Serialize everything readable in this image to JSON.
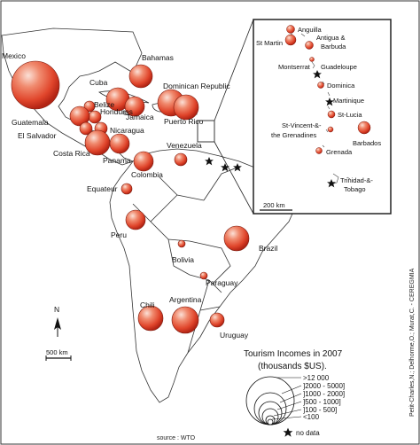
{
  "map": {
    "title_line1": "Tourism Incomes in 2007",
    "title_line2": "(thousands $US).",
    "source": "source : WTO",
    "credit": "Petit-Charles,N.; Delhorme,O.; Murat,C. - CEREGMIA",
    "north_label": "N",
    "scale_main": "500 km",
    "scale_inset": "200 km",
    "legend_classes": [
      ">12 000",
      "]2000 - 5000]",
      "]1000 - 2000]",
      "]500 - 1000]",
      "]100 - 500]",
      "<100"
    ],
    "no_data_label": "no data",
    "colors": {
      "bubble_center": "#fbe0d6",
      "bubble_mid": "#e8573b",
      "bubble_edge": "#b32414",
      "land_stroke": "#333333"
    },
    "icons": [
      "star-icon",
      "north-arrow-icon",
      "scale-bar-icon"
    ]
  },
  "countries": [
    {
      "name": "Mexico",
      "value_class": ">12 000"
    },
    {
      "name": "Cuba",
      "value_class": "]2000 - 5000]"
    },
    {
      "name": "Bahamas",
      "value_class": "]2000 - 5000]"
    },
    {
      "name": "Dominican Republic",
      "value_class": "]2000 - 5000]"
    },
    {
      "name": "Jamaica",
      "value_class": "]1000 - 2000]"
    },
    {
      "name": "Puerto Rico",
      "value_class": "]2000 - 5000]"
    },
    {
      "name": "Belize",
      "value_class": "]100 - 500]"
    },
    {
      "name": "Honduras",
      "value_class": "]500 - 1000]"
    },
    {
      "name": "Guatemala",
      "value_class": "]1000 - 2000]"
    },
    {
      "name": "El Salvador",
      "value_class": "]500 - 1000]"
    },
    {
      "name": "Nicaragua",
      "value_class": "]100 - 500]"
    },
    {
      "name": "Costa Rica",
      "value_class": "]1000 - 2000]"
    },
    {
      "name": "Panama",
      "value_class": "]1000 - 2000]"
    },
    {
      "name": "Venezuela",
      "value_class": "]500 - 1000]"
    },
    {
      "name": "Colombia",
      "value_class": "]1000 - 2000]"
    },
    {
      "name": "Equateur",
      "value_class": "]100 - 500]"
    },
    {
      "name": "Peru",
      "value_class": "]1000 - 2000]"
    },
    {
      "name": "Brazil",
      "value_class": "]2000 - 5000]"
    },
    {
      "name": "Bolivia",
      "value_class": "<100"
    },
    {
      "name": "Paraguay",
      "value_class": "<100"
    },
    {
      "name": "Chili",
      "value_class": "]1000 - 2000]"
    },
    {
      "name": "Argentina",
      "value_class": "]2000 - 5000]"
    },
    {
      "name": "Uruguay",
      "value_class": "]500 - 1000]"
    }
  ],
  "inset_islands": [
    {
      "name": "Anguilla",
      "value_class": "]100 - 500]"
    },
    {
      "name": "St Martin",
      "value_class": "]500 - 1000]"
    },
    {
      "name": "Antigua & Barbuda",
      "value_class": "]100 - 500]"
    },
    {
      "name": "Montserrat",
      "value_class": "<100"
    },
    {
      "name": "Guadeloupe",
      "value_class": "no data"
    },
    {
      "name": "Dominica",
      "value_class": "<100"
    },
    {
      "name": "Martinique",
      "value_class": "no data"
    },
    {
      "name": "St-Lucia",
      "value_class": "]100 - 500]"
    },
    {
      "name": "St-Vincent-&-the Grenadines",
      "value_class": "<100"
    },
    {
      "name": "Barbados",
      "value_class": "]500 - 1000]"
    },
    {
      "name": "Grenada",
      "value_class": "<100"
    },
    {
      "name": "Trinidad-&-Tobago",
      "value_class": "no data"
    }
  ]
}
